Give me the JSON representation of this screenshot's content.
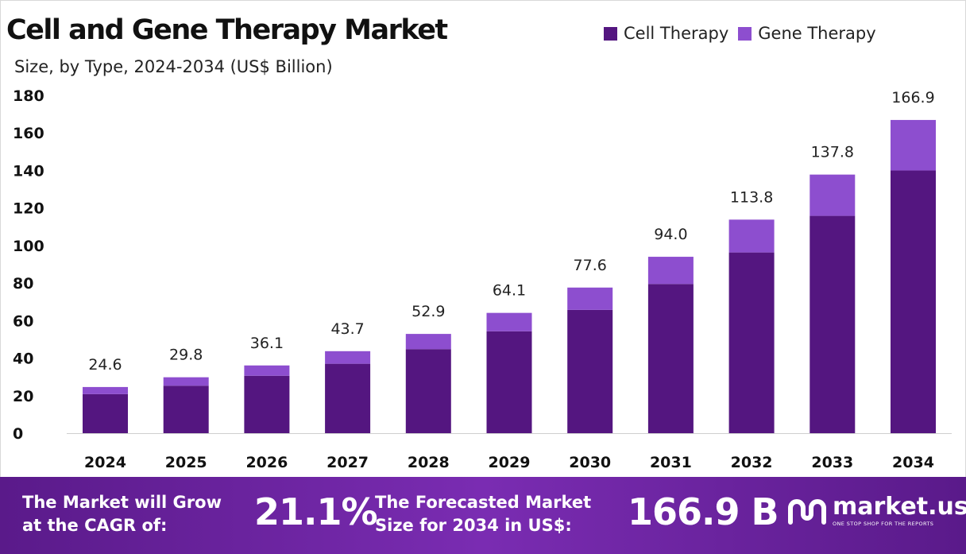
{
  "header": {
    "title": "Cell and Gene Therapy Market",
    "subtitle": "Size, by Type, 2024-2034 (US$ Billion)"
  },
  "colors": {
    "cell_therapy": "#541680",
    "gene_therapy": "#8d4ecf",
    "footer_start": "#5a1a8a",
    "footer_mid": "#7a2cb2"
  },
  "chart_data": {
    "type": "bar",
    "stacked": true,
    "categories": [
      "2024",
      "2025",
      "2026",
      "2027",
      "2028",
      "2029",
      "2030",
      "2031",
      "2032",
      "2033",
      "2034"
    ],
    "series": [
      {
        "name": "Cell Therapy",
        "values": [
          20.8,
          25.3,
          30.6,
          37.0,
          44.8,
          54.3,
          65.7,
          79.5,
          96.3,
          115.8,
          140.0
        ]
      },
      {
        "name": "Gene Therapy",
        "values": [
          3.8,
          4.5,
          5.5,
          6.7,
          8.1,
          9.8,
          11.9,
          14.5,
          17.5,
          22.0,
          26.9
        ]
      }
    ],
    "totals": [
      24.6,
      29.8,
      36.1,
      43.7,
      52.9,
      64.1,
      77.6,
      94.0,
      113.8,
      137.8,
      166.9
    ],
    "total_labels": [
      "24.6",
      "29.8",
      "36.1",
      "43.7",
      "52.9",
      "64.1",
      "77.6",
      "94.0",
      "113.8",
      "137.8",
      "166.9"
    ],
    "yticks": [
      0,
      20,
      40,
      60,
      80,
      100,
      120,
      140,
      160,
      180
    ],
    "ylim": [
      0,
      180
    ],
    "grid": false,
    "legend": "top-right",
    "title": "Cell and Gene Therapy Market",
    "subtitle": "Size, by Type, 2024-2034 (US$ Billion)",
    "xlabel": "",
    "ylabel": ""
  },
  "footer": {
    "cagr_label_line1": "The Market will Grow",
    "cagr_label_line2": "at the CAGR of:",
    "cagr_value": "21.1%",
    "forecast_label_line1": "The Forecasted Market",
    "forecast_label_line2": "Size for 2034 in US$:",
    "forecast_value": "166.9 B",
    "logo_name": "market.us",
    "logo_tagline": "ONE STOP SHOP FOR THE REPORTS",
    "logo_icon": "market-us-logo-icon"
  }
}
